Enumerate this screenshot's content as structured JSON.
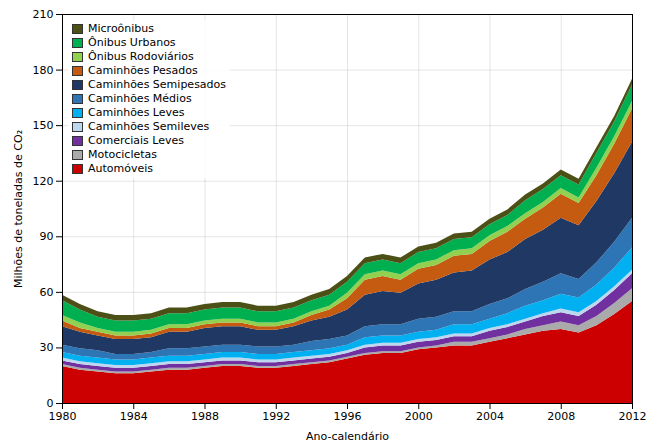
{
  "chart_data": {
    "type": "area",
    "stacked": true,
    "xlabel": "Ano-calendário",
    "ylabel": "Milhões de toneladas de CO₂",
    "x": [
      1980,
      1981,
      1982,
      1983,
      1984,
      1985,
      1986,
      1987,
      1988,
      1989,
      1990,
      1991,
      1992,
      1993,
      1994,
      1995,
      1996,
      1997,
      1998,
      1999,
      2000,
      2001,
      2002,
      2003,
      2004,
      2005,
      2006,
      2007,
      2008,
      2009,
      2010,
      2011,
      2012
    ],
    "series": [
      {
        "name": "Automóveis",
        "color": "#cc0000",
        "values": [
          20,
          18,
          17,
          16,
          16,
          17,
          18,
          18,
          19,
          20,
          20,
          19,
          19,
          20,
          21,
          22,
          24,
          26,
          27,
          27,
          29,
          30,
          31,
          31,
          33,
          35,
          37,
          39,
          40,
          38,
          42,
          48,
          55
        ]
      },
      {
        "name": "Motocicletas",
        "color": "#aaaaaa",
        "values": [
          1,
          1,
          1,
          1,
          1,
          1,
          1,
          1,
          1,
          1,
          1,
          1,
          1,
          1,
          1,
          1,
          1,
          1,
          1,
          1,
          1,
          1,
          2,
          2,
          2,
          2,
          3,
          3,
          4,
          4,
          5,
          6,
          7
        ]
      },
      {
        "name": "Comerciais Leves",
        "color": "#7030a0",
        "values": [
          2,
          2,
          2,
          2,
          2,
          2,
          2,
          2,
          2,
          2,
          2,
          2,
          2,
          2,
          2,
          2,
          2,
          3,
          3,
          3,
          3,
          3,
          3,
          3,
          4,
          4,
          4,
          5,
          5,
          5,
          6,
          7,
          8
        ]
      },
      {
        "name": "Caminhões Semileves",
        "color": "#bdd7ee",
        "values": [
          1.5,
          1.5,
          1.5,
          1.5,
          1.5,
          1.5,
          1.5,
          1.5,
          1.5,
          1.5,
          1.5,
          1.5,
          1.5,
          1.5,
          1.5,
          1.5,
          1.5,
          1.5,
          1.5,
          1.5,
          1.5,
          1.5,
          1.5,
          1.5,
          1.5,
          1.5,
          1.5,
          1.5,
          2,
          2,
          2,
          2,
          2
        ]
      },
      {
        "name": "Caminhões Leves",
        "color": "#00b0f0",
        "values": [
          3,
          3,
          3,
          3,
          3,
          3,
          3,
          3,
          3,
          3,
          3,
          3,
          3,
          3,
          3,
          3,
          3,
          4,
          4,
          4,
          4,
          4,
          5,
          5,
          5,
          6,
          7,
          7,
          8,
          8,
          9,
          10,
          12
        ]
      },
      {
        "name": "Caminhões Médios",
        "color": "#2e75b6",
        "values": [
          4,
          4,
          4,
          3,
          3,
          3,
          4,
          4,
          4,
          4,
          4,
          4,
          4,
          4,
          5,
          5,
          5,
          6,
          6,
          6,
          7,
          7,
          7,
          7,
          8,
          8,
          9,
          10,
          11,
          10,
          12,
          14,
          16
        ]
      },
      {
        "name": "Caminhões Semipesados",
        "color": "#1f3864",
        "values": [
          10,
          9,
          8,
          8,
          8,
          8,
          9,
          9,
          10,
          10,
          10,
          9,
          9,
          10,
          11,
          12,
          14,
          17,
          18,
          17,
          19,
          20,
          21,
          22,
          24,
          25,
          27,
          28,
          30,
          29,
          33,
          37,
          41
        ]
      },
      {
        "name": "Caminhões Pesados",
        "color": "#c55a11",
        "values": [
          3,
          2,
          2,
          2,
          2,
          2,
          2,
          2,
          2,
          2,
          2,
          2,
          2,
          2,
          3,
          4,
          6,
          8,
          8,
          7,
          8,
          8,
          9,
          9,
          10,
          11,
          11,
          12,
          13,
          12,
          14,
          16,
          18
        ]
      },
      {
        "name": "Ônibus Rodoviários",
        "color": "#92d050",
        "values": [
          3,
          3,
          2,
          2,
          2,
          2,
          2,
          2,
          2,
          2,
          2,
          2,
          2,
          2,
          2,
          2,
          3,
          3,
          3,
          3,
          3,
          3,
          3,
          3,
          3,
          3,
          3,
          3,
          3,
          3,
          4,
          4,
          4
        ]
      },
      {
        "name": "Ônibus Urbanos",
        "color": "#00b050",
        "values": [
          8,
          7,
          6,
          6,
          6,
          6,
          6,
          6,
          6,
          6,
          6,
          6,
          6,
          6,
          6,
          6,
          6,
          6,
          6,
          6,
          6,
          6,
          6,
          6,
          6,
          6,
          7,
          7,
          7,
          7,
          8,
          8,
          9
        ]
      },
      {
        "name": "Microônibus",
        "color": "#4d5016",
        "values": [
          3,
          3,
          3,
          3,
          3,
          3,
          3,
          3,
          3,
          3,
          3,
          3,
          3,
          3,
          3,
          3,
          3,
          3,
          3,
          3,
          3,
          3,
          3,
          3,
          3,
          3,
          3,
          3,
          3,
          3,
          3,
          3,
          3
        ]
      }
    ],
    "xlim": [
      1980,
      2012
    ],
    "ylim": [
      0,
      210
    ],
    "xticks": [
      1980,
      1984,
      1988,
      1992,
      1996,
      2000,
      2004,
      2008,
      2012
    ],
    "yticks": [
      0,
      30,
      60,
      90,
      120,
      150,
      180,
      210
    ],
    "grid": true,
    "legend": "upper left"
  }
}
